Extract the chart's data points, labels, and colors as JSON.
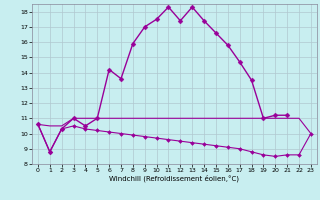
{
  "xlabel": "Windchill (Refroidissement éolien,°C)",
  "xlim": [
    -0.5,
    23.5
  ],
  "ylim": [
    8,
    18.5
  ],
  "yticks": [
    8,
    9,
    10,
    11,
    12,
    13,
    14,
    15,
    16,
    17,
    18
  ],
  "xticks": [
    0,
    1,
    2,
    3,
    4,
    5,
    6,
    7,
    8,
    9,
    10,
    11,
    12,
    13,
    14,
    15,
    16,
    17,
    18,
    19,
    20,
    21,
    22,
    23
  ],
  "background_color": "#c8eef0",
  "grid_color": "#b0c8d0",
  "line_color": "#990099",
  "series": [
    {
      "x": [
        0,
        1,
        2,
        3,
        4,
        5,
        6,
        7,
        8,
        9,
        10,
        11,
        12,
        13,
        14,
        15,
        16,
        17,
        18,
        19,
        20,
        21
      ],
      "y": [
        10.6,
        8.8,
        10.3,
        11.0,
        10.5,
        11.0,
        14.2,
        13.6,
        15.9,
        17.0,
        17.5,
        18.3,
        17.4,
        18.3,
        17.4,
        16.6,
        15.8,
        14.7,
        13.5,
        11.0,
        11.2,
        11.2
      ],
      "marker": "D",
      "markersize": 2.5,
      "linewidth": 1.0
    },
    {
      "x": [
        0,
        1,
        2,
        3,
        4,
        5,
        6,
        7,
        8,
        9,
        10,
        11,
        12,
        13,
        14,
        15,
        16,
        17,
        18,
        19,
        20,
        21,
        22,
        23
      ],
      "y": [
        10.6,
        10.5,
        10.5,
        11.0,
        11.0,
        11.0,
        11.0,
        11.0,
        11.0,
        11.0,
        11.0,
        11.0,
        11.0,
        11.0,
        11.0,
        11.0,
        11.0,
        11.0,
        11.0,
        11.0,
        11.0,
        11.0,
        11.0,
        10.0
      ],
      "marker": null,
      "markersize": 0,
      "linewidth": 0.8
    },
    {
      "x": [
        0,
        1,
        2,
        3,
        4,
        5,
        6,
        7,
        8,
        9,
        10,
        11,
        12,
        13,
        14,
        15,
        16,
        17,
        18,
        19,
        20,
        21,
        22,
        23
      ],
      "y": [
        10.6,
        8.8,
        10.3,
        10.5,
        10.3,
        10.2,
        10.1,
        10.0,
        9.9,
        9.8,
        9.7,
        9.6,
        9.5,
        9.4,
        9.3,
        9.2,
        9.1,
        9.0,
        8.8,
        8.6,
        8.5,
        8.6,
        8.6,
        10.0
      ],
      "marker": "D",
      "markersize": 2.0,
      "linewidth": 0.8
    }
  ]
}
